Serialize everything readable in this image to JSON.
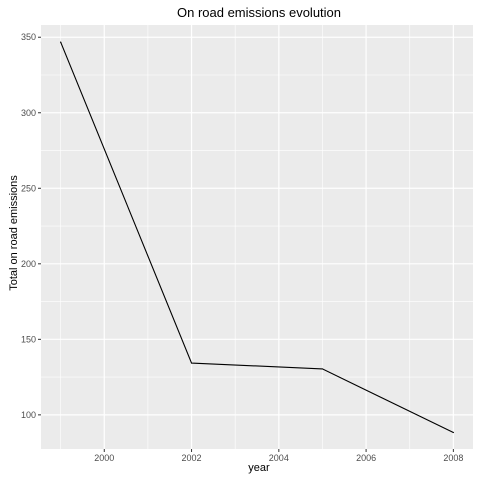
{
  "chart_data": {
    "type": "line",
    "title": "On road emissions evolution",
    "xlabel": "year",
    "ylabel": "Total on road emissions",
    "x": [
      1999,
      2002,
      2005,
      2008
    ],
    "series": [
      {
        "values": [
          346.8,
          134.3,
          130.4,
          88.3
        ]
      }
    ],
    "xlim": [
      1998.55,
      2008.45
    ],
    "ylim": [
      77.4,
      358.1
    ],
    "x_ticks": [
      2000,
      2002,
      2004,
      2006,
      2008
    ],
    "x_minor_ticks": [
      1999,
      2001,
      2003,
      2005,
      2007
    ],
    "y_ticks": [
      100,
      150,
      200,
      250,
      300,
      350
    ],
    "y_minor_ticks": [
      125,
      175,
      225,
      275,
      325
    ],
    "grid": true,
    "colors": {
      "panel": "#EBEBEB",
      "grid": "#FFFFFF",
      "line": "#000000"
    }
  }
}
